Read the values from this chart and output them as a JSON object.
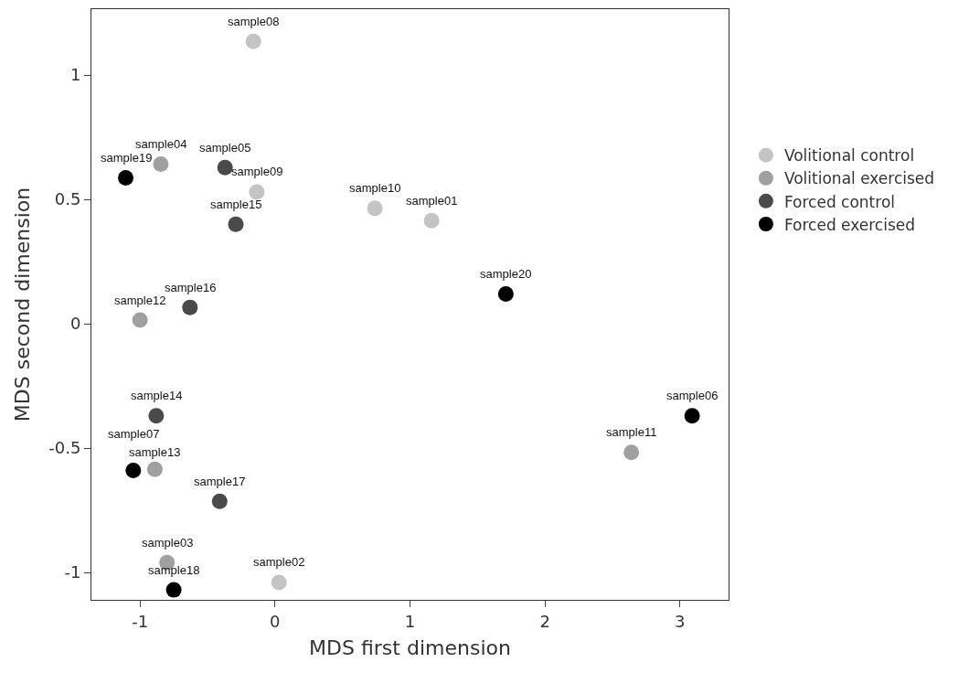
{
  "chart_data": {
    "type": "scatter",
    "xlabel": "MDS first dimension",
    "ylabel": "MDS second dimension",
    "xlim": [
      -1.36,
      3.36
    ],
    "xticks": [
      -1,
      0,
      1,
      2,
      3
    ],
    "ylim": [
      -1.11,
      1.265
    ],
    "yticks": [
      -1,
      -0.5,
      0,
      0.5,
      1
    ],
    "grid": false,
    "legend": "right",
    "marker": "circle",
    "series": [
      {
        "name": "Volitional control",
        "color": "#c4c4c4",
        "x": [
          -0.16,
          -0.135,
          0.74,
          1.16,
          0.03
        ],
        "values": [
          1.135,
          0.53,
          0.464,
          0.415,
          -1.04
        ]
      },
      {
        "name": "Volitional exercised",
        "color": "#a0a0a0",
        "x": [
          -0.846,
          -1.0,
          -0.89,
          -0.8,
          2.64
        ],
        "values": [
          0.642,
          0.015,
          -0.585,
          -0.96,
          -0.517
        ]
      },
      {
        "name": "Forced control",
        "color": "#4a4a4a",
        "x": [
          -0.37,
          -0.29,
          -0.63,
          -0.88,
          -0.41
        ],
        "values": [
          0.628,
          0.4,
          0.066,
          -0.37,
          -0.714
        ]
      },
      {
        "name": "Forced exercised",
        "color": "#000000",
        "x": [
          -1.106,
          1.71,
          -1.05,
          -0.75,
          3.09
        ],
        "values": [
          0.587,
          0.12,
          -0.59,
          -1.07,
          -0.37
        ]
      }
    ],
    "annotations": [
      {
        "text": "sample08",
        "x": -0.16,
        "y": 1.135
      },
      {
        "text": "sample09",
        "x": -0.135,
        "y": 0.53
      },
      {
        "text": "sample10",
        "x": 0.74,
        "y": 0.464
      },
      {
        "text": "sample01",
        "x": 1.16,
        "y": 0.415
      },
      {
        "text": "sample02",
        "x": 0.03,
        "y": -1.04
      },
      {
        "text": "sample04",
        "x": -0.846,
        "y": 0.642
      },
      {
        "text": "sample12",
        "x": -1.0,
        "y": 0.015
      },
      {
        "text": "sample13",
        "x": -0.89,
        "y": -0.585
      },
      {
        "text": "sample03",
        "x": -0.8,
        "y": -0.96
      },
      {
        "text": "sample11",
        "x": 2.64,
        "y": -0.517
      },
      {
        "text": "sample05",
        "x": -0.37,
        "y": 0.628
      },
      {
        "text": "sample15",
        "x": -0.29,
        "y": 0.4
      },
      {
        "text": "sample16",
        "x": -0.63,
        "y": 0.066
      },
      {
        "text": "sample14",
        "x": -0.88,
        "y": -0.37
      },
      {
        "text": "sample17",
        "x": -0.41,
        "y": -0.714
      },
      {
        "text": "sample19",
        "x": -1.106,
        "y": 0.587
      },
      {
        "text": "sample20",
        "x": 1.71,
        "y": 0.12
      },
      {
        "text": "sample07",
        "x": -1.05,
        "y": -0.59
      },
      {
        "text": "sample18",
        "x": -0.75,
        "y": -1.07
      },
      {
        "text": "sample06",
        "x": 3.09,
        "y": -0.37
      }
    ]
  }
}
